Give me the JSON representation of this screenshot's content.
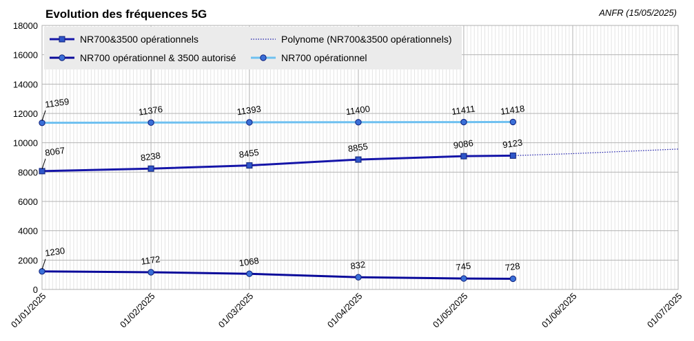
{
  "chart_data": {
    "type": "line",
    "title": "Evolution des fréquences 5G",
    "source_note": "ANFR (15/05/2025)",
    "xlabel": "",
    "ylabel": "",
    "x_ticks": [
      "01/01/2025",
      "01/02/2025",
      "01/03/2025",
      "01/04/2025",
      "01/05/2025",
      "01/06/2025",
      "01/07/2025"
    ],
    "x_range": [
      "2025-01-01",
      "2025-07-01"
    ],
    "ylim": [
      0,
      18000
    ],
    "y_ticks": [
      0,
      2000,
      4000,
      6000,
      8000,
      10000,
      12000,
      14000,
      16000,
      18000
    ],
    "grid": true,
    "legend_position": "top-left",
    "x": [
      "2025-01-01",
      "2025-02-01",
      "2025-03-01",
      "2025-04-01",
      "2025-05-01",
      "2025-05-15"
    ],
    "series": [
      {
        "name": "NR700&3500 opérationnels",
        "color": "#1515a8",
        "marker": "square",
        "values": [
          8067,
          8238,
          8455,
          8855,
          9086,
          9123
        ]
      },
      {
        "name": "NR700 opérationnel & 3500 autorisé",
        "color": "#0a0a9a",
        "marker": "circle",
        "values": [
          1230,
          1172,
          1068,
          832,
          745,
          728
        ]
      },
      {
        "name": "NR700 opérationnel",
        "color": "#6ec0f0",
        "marker": "circle",
        "values": [
          11359,
          11376,
          11393,
          11400,
          11411,
          11418
        ]
      }
    ],
    "trendline": {
      "name": "Polynome (NR700&3500 opérationnels)",
      "color": "#1515a8",
      "style": "dotted",
      "of_series": "NR700&3500 opérationnels",
      "x": [
        "2025-05-15",
        "2025-06-01",
        "2025-07-01"
      ],
      "values": [
        9123,
        9260,
        9570
      ]
    }
  }
}
